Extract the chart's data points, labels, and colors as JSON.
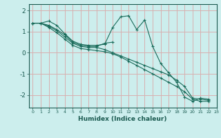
{
  "title": "",
  "xlabel": "Humidex (Indice chaleur)",
  "background_color": "#cceeed",
  "grid_color": "#d8b0b0",
  "line_color": "#1a6b5a",
  "xlim": [
    -0.5,
    23
  ],
  "ylim": [
    -2.6,
    2.3
  ],
  "yticks": [
    -2,
    -1,
    0,
    1,
    2
  ],
  "xticks": [
    0,
    1,
    2,
    3,
    4,
    5,
    6,
    7,
    8,
    9,
    10,
    11,
    12,
    13,
    14,
    15,
    16,
    17,
    18,
    19,
    20,
    21,
    22,
    23
  ],
  "series": [
    [
      1.4,
      1.4,
      1.5,
      1.3,
      0.9,
      0.55,
      0.4,
      0.35,
      0.35,
      0.4,
      1.2,
      1.7,
      1.75,
      1.1,
      1.55,
      0.3,
      -0.5,
      -0.95,
      -1.4,
      -2.1,
      -2.3,
      -2.15,
      -2.2,
      null
    ],
    [
      1.4,
      1.4,
      1.3,
      1.1,
      0.85,
      0.5,
      0.35,
      0.3,
      0.3,
      0.45,
      0.5,
      null,
      null,
      null,
      null,
      null,
      null,
      null,
      null,
      null,
      null,
      null,
      null,
      null
    ],
    [
      1.4,
      1.4,
      1.25,
      1.05,
      0.75,
      0.45,
      0.3,
      0.25,
      0.25,
      0.15,
      0.0,
      -0.15,
      -0.3,
      -0.45,
      -0.6,
      -0.75,
      -0.9,
      -1.05,
      -1.3,
      -1.6,
      -2.15,
      -2.2,
      -2.25,
      null
    ],
    [
      1.4,
      1.4,
      1.2,
      0.95,
      0.65,
      0.35,
      0.2,
      0.15,
      0.1,
      0.05,
      -0.05,
      -0.2,
      -0.4,
      -0.6,
      -0.8,
      -1.0,
      -1.2,
      -1.4,
      -1.6,
      -1.85,
      -2.2,
      -2.3,
      -2.3,
      null
    ]
  ]
}
